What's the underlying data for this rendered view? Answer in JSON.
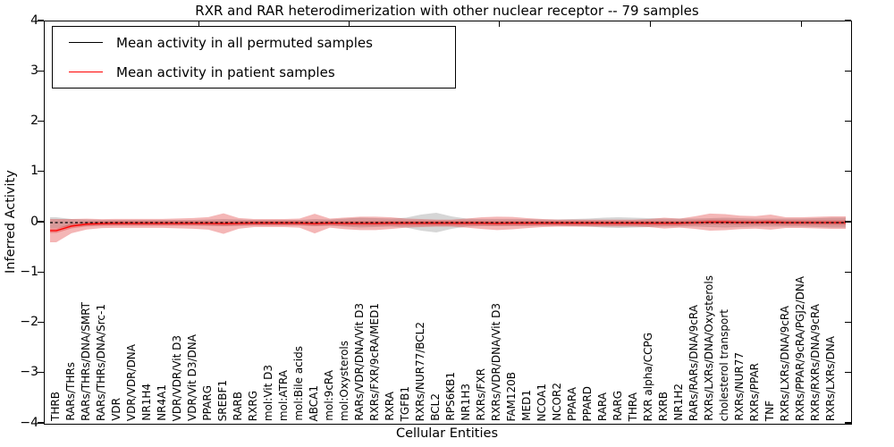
{
  "legend": {
    "entries": [
      {
        "label": "Mean activity in all permuted samples",
        "color": "#000000"
      },
      {
        "label": "Mean activity in patient samples",
        "color": "#ff0000"
      }
    ],
    "position": "upper left"
  },
  "chart_data": {
    "type": "line",
    "title": "RXR and RAR heterodimerization with other nuclear receptor -- 79 samples",
    "xlabel": "Cellular Entities",
    "ylabel": "Inferred Activity",
    "ylim": [
      -4,
      4
    ],
    "yticks": [
      4,
      3,
      2,
      1,
      0,
      -1,
      -2,
      -3,
      -4
    ],
    "grid": false,
    "legend_position": "upper left",
    "categories": [
      "THRB",
      "RARs/THRs",
      "RARs/THRs/DNA/SMRT",
      "RARs/THRs/DNA/Src-1",
      "VDR",
      "VDR/VDR/DNA",
      "NR1H4",
      "NR4A1",
      "VDR/VDR/Vit D3",
      "VDR/Vit D3/DNA",
      "PPARG",
      "SREBF1",
      "RARB",
      "RXRG",
      "mol:Vit D3",
      "mol:ATRA",
      "mol:Bile acids",
      "ABCA1",
      "mol:9cRA",
      "mol:Oxysterols",
      "RARs/VDR/DNA/Vit D3",
      "RXRs/FXR/9cRA/MED1",
      "RXRA",
      "TGFB1",
      "RXRs/NUR77/BCL2",
      "BCL2",
      "RPS6KB1",
      "NR1H3",
      "RXRs/FXR",
      "RXRs/VDR/DNA/Vit D3",
      "FAM120B",
      "MED1",
      "NCOA1",
      "NCOR2",
      "PPARA",
      "PPARD",
      "RARA",
      "RARG",
      "THRA",
      "RXR alpha/CCPG",
      "RXRB",
      "NR1H2",
      "RARs/RARs/DNA/9cRA",
      "RXRs/LXRs/DNA/Oxysterols",
      "cholesterol transport",
      "RXRs/NUR77",
      "RXRs/PPAR",
      "TNF",
      "RXRs/LXRs/DNA/9cRA",
      "RXRs/PPAR/9cRA/PGJ2/DNA",
      "RXRs/RXRs/DNA/9cRA",
      "RXRs/LXRs/DNA"
    ],
    "series": [
      {
        "name": "Mean activity in all permuted samples",
        "color": "#000000",
        "line_style": "dashed",
        "values": [
          0,
          0,
          0,
          0,
          0,
          0,
          0,
          0,
          0,
          0,
          0,
          0,
          0,
          0,
          0,
          0,
          0,
          0,
          0,
          0,
          0,
          0,
          0,
          0,
          0,
          0,
          0,
          0,
          0,
          0,
          0,
          0,
          0,
          0,
          0,
          0,
          0,
          0,
          0,
          0,
          0,
          0,
          0,
          0,
          0,
          0,
          0,
          0,
          0,
          0,
          0,
          0
        ],
        "band_halfwidth": [
          0.107,
          0.071,
          0.062,
          0.053,
          0.053,
          0.053,
          0.053,
          0.053,
          0.053,
          0.053,
          0.062,
          0.071,
          0.062,
          0.053,
          0.053,
          0.053,
          0.053,
          0.071,
          0.062,
          0.08,
          0.098,
          0.089,
          0.08,
          0.098,
          0.16,
          0.196,
          0.124,
          0.08,
          0.071,
          0.071,
          0.071,
          0.071,
          0.062,
          0.062,
          0.071,
          0.08,
          0.098,
          0.107,
          0.098,
          0.089,
          0.08,
          0.08,
          0.08,
          0.089,
          0.098,
          0.089,
          0.08,
          0.08,
          0.08,
          0.08,
          0.089,
          0.098
        ],
        "band_color": "#000000",
        "band_opacity": 0.16
      },
      {
        "name": "Mean activity in patient samples",
        "color": "#ff0000",
        "line_style": "solid",
        "values": [
          -0.16,
          -0.07,
          -0.03,
          -0.02,
          -0.015,
          -0.015,
          -0.015,
          -0.015,
          -0.015,
          -0.015,
          -0.015,
          -0.02,
          -0.015,
          -0.01,
          -0.01,
          -0.01,
          -0.01,
          -0.02,
          -0.01,
          -0.015,
          -0.015,
          -0.015,
          -0.01,
          -0.01,
          -0.01,
          -0.01,
          -0.01,
          -0.01,
          -0.01,
          -0.015,
          -0.01,
          -0.01,
          -0.01,
          -0.01,
          -0.01,
          -0.01,
          -0.01,
          -0.01,
          -0.01,
          -0.01,
          -0.01,
          -0.01,
          0.0,
          0.01,
          0.01,
          0.005,
          0.005,
          0.01,
          0.0,
          0.0,
          0.0,
          0.0
        ],
        "band_halfwidth": [
          0.23,
          0.142,
          0.107,
          0.089,
          0.089,
          0.089,
          0.089,
          0.089,
          0.098,
          0.107,
          0.124,
          0.204,
          0.107,
          0.08,
          0.08,
          0.08,
          0.089,
          0.196,
          0.089,
          0.116,
          0.133,
          0.133,
          0.116,
          0.089,
          0.08,
          0.071,
          0.071,
          0.089,
          0.116,
          0.133,
          0.124,
          0.098,
          0.08,
          0.071,
          0.071,
          0.071,
          0.071,
          0.071,
          0.071,
          0.08,
          0.107,
          0.089,
          0.124,
          0.169,
          0.16,
          0.133,
          0.124,
          0.151,
          0.107,
          0.107,
          0.116,
          0.124
        ],
        "inner_band_halfwidth": 0.045,
        "band_color": "#dd2020",
        "band_opacity": 0.33
      }
    ]
  }
}
